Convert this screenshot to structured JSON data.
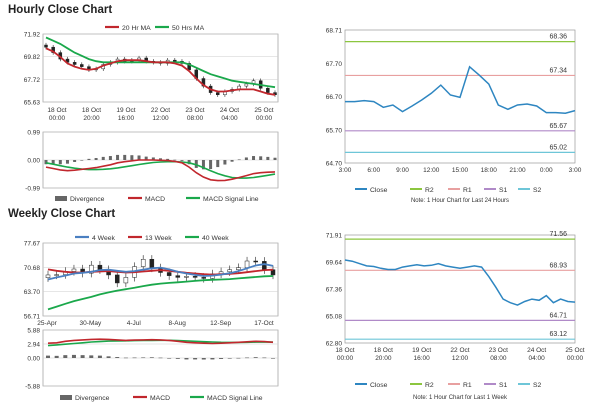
{
  "sections": {
    "hourly_title": "Hourly Close Chart",
    "weekly_title": "Weekly Close Chart"
  },
  "colors": {
    "ma_short": "#c1272d",
    "ma_long": "#1aa84b",
    "ma_4w": "#4a7fc1",
    "close": "#2e86c1",
    "r2": "#8cc63f",
    "r1": "#e8a0a0",
    "s1": "#b08ac8",
    "s2": "#6ec6d8",
    "macd": "#c1272d",
    "signal": "#1aa84b",
    "divergence": "#666666",
    "grid": "#cccccc"
  },
  "chart_data": [
    {
      "id": "hourly_candles",
      "type": "candlestick",
      "legend": [
        "20 Hr MA",
        "50 Hrs MA"
      ],
      "ylim": [
        65.63,
        71.92
      ],
      "y_ticks": [
        "71.92",
        "69.82",
        "67.72",
        "65.63"
      ],
      "x_ticks": [
        [
          "18 Oct",
          "00:00"
        ],
        [
          "18 Oct",
          "20:00"
        ],
        [
          "19 Oct",
          "16:00"
        ],
        [
          "22 Oct",
          "12:00"
        ],
        [
          "23 Oct",
          "08:00"
        ],
        [
          "24 Oct",
          "04:00"
        ],
        [
          "25 Oct",
          "00:00"
        ]
      ],
      "close": [
        70.7,
        70.2,
        69.6,
        69.3,
        69.1,
        68.9,
        68.6,
        68.7,
        69.1,
        69.3,
        69.6,
        69.4,
        69.5,
        69.7,
        69.4,
        69.3,
        69.2,
        69.5,
        69.4,
        69.2,
        68.6,
        67.8,
        67.1,
        66.5,
        66.3,
        66.6,
        66.8,
        67.1,
        67.3,
        67.6,
        66.9,
        66.5,
        66.3
      ],
      "ma20": [
        70.6,
        70.3,
        69.8,
        69.2,
        68.9,
        68.7,
        68.6,
        68.7,
        69.0,
        69.2,
        69.4,
        69.5,
        69.5,
        69.5,
        69.4,
        69.3,
        69.3,
        69.3,
        69.2,
        69.0,
        68.5,
        67.8,
        67.2,
        66.8,
        66.6,
        66.6,
        66.7,
        66.8,
        66.8,
        66.8,
        66.6,
        66.4,
        66.3
      ],
      "ma50": [
        71.6,
        71.3,
        71.0,
        70.6,
        70.2,
        69.9,
        69.6,
        69.4,
        69.3,
        69.3,
        69.3,
        69.3,
        69.3,
        69.3,
        69.3,
        69.3,
        69.3,
        69.3,
        69.3,
        69.3,
        69.1,
        68.8,
        68.5,
        68.2,
        68.0,
        67.8,
        67.6,
        67.5,
        67.4,
        67.3,
        67.2,
        67.1,
        67.0
      ]
    },
    {
      "id": "hourly_macd",
      "type": "line",
      "legend": [
        "Divergence",
        "MACD",
        "MACD Signal Line"
      ],
      "ylim": [
        -0.99,
        0.99
      ],
      "y_ticks": [
        "0.99",
        "0.00",
        "-0.99"
      ],
      "macd": [
        -0.25,
        -0.3,
        -0.35,
        -0.38,
        -0.36,
        -0.33,
        -0.3,
        -0.27,
        -0.22,
        -0.17,
        -0.1,
        -0.06,
        -0.03,
        0.0,
        0.0,
        0.0,
        -0.01,
        -0.02,
        -0.05,
        -0.1,
        -0.25,
        -0.45,
        -0.6,
        -0.7,
        -0.73,
        -0.72,
        -0.68,
        -0.62,
        -0.55,
        -0.48,
        -0.45,
        -0.43,
        -0.42
      ],
      "signal": [
        -0.1,
        -0.15,
        -0.2,
        -0.25,
        -0.29,
        -0.32,
        -0.34,
        -0.34,
        -0.33,
        -0.31,
        -0.28,
        -0.24,
        -0.2,
        -0.16,
        -0.12,
        -0.09,
        -0.07,
        -0.06,
        -0.06,
        -0.07,
        -0.1,
        -0.17,
        -0.27,
        -0.38,
        -0.48,
        -0.56,
        -0.62,
        -0.64,
        -0.64,
        -0.62,
        -0.58,
        -0.54,
        -0.5
      ]
    },
    {
      "id": "hourly_24h",
      "type": "line",
      "ylim": [
        64.7,
        68.71
      ],
      "y_ticks": [
        "68.71",
        "67.70",
        "66.70",
        "65.70",
        "64.70"
      ],
      "x_ticks": [
        "3:00",
        "6:00",
        "9:00",
        "12:00",
        "15:00",
        "18:00",
        "21:00",
        "0:00",
        "3:00"
      ],
      "levels": {
        "R2": 68.36,
        "R1": 67.34,
        "S1": 65.67,
        "S2": 65.02
      },
      "level_labels": {
        "R2": "68.36",
        "R1": "67.34",
        "S1": "65.67",
        "S2": "65.02"
      },
      "close": [
        66.55,
        66.55,
        66.58,
        66.55,
        66.38,
        66.45,
        66.25,
        66.42,
        66.6,
        66.8,
        67.05,
        66.75,
        66.68,
        67.6,
        67.35,
        67.08,
        66.45,
        66.32,
        66.45,
        66.48,
        66.42,
        66.22,
        66.22,
        66.2,
        66.28
      ],
      "legend": [
        "Close",
        "R2",
        "R1",
        "S1",
        "S2"
      ],
      "note": "Note: 1 Hour Chart for Last 24 Hours"
    },
    {
      "id": "weekly_candles",
      "type": "candlestick",
      "legend": [
        "4 Week",
        "13 Week",
        "40 Week"
      ],
      "ylim": [
        56.71,
        77.67
      ],
      "y_ticks": [
        "77.67",
        "70.68",
        "63.70",
        "56.71"
      ],
      "x_ticks": [
        "25-Apr",
        "30-May",
        "4-Jul",
        "8-Aug",
        "12-Sep",
        "17-Oct"
      ],
      "close": [
        68.5,
        68.6,
        69.5,
        70.2,
        69.0,
        71.3,
        70.0,
        68.5,
        66.2,
        67.8,
        70.9,
        73.0,
        70.5,
        69.2,
        68.3,
        67.8,
        68.1,
        67.8,
        67.5,
        68.8,
        69.4,
        70.0,
        70.6,
        72.5,
        72.4,
        70.0,
        68.5
      ],
      "wk4": [
        67.2,
        67.8,
        68.3,
        68.9,
        69.1,
        69.4,
        69.9,
        70.0,
        69.7,
        69.4,
        69.6,
        70.0,
        70.4,
        70.6,
        70.1,
        69.4,
        68.9,
        68.5,
        68.2,
        68.3,
        68.6,
        69.0,
        69.6,
        70.4,
        71.2,
        71.6,
        71.1
      ],
      "wk13": [
        70.1,
        69.7,
        69.4,
        69.2,
        69.2,
        69.4,
        69.5,
        69.6,
        69.4,
        69.2,
        69.3,
        69.5,
        69.7,
        69.9,
        69.7,
        69.4,
        69.1,
        68.9,
        68.7,
        68.6,
        68.7,
        68.8,
        69.0,
        69.3,
        69.6,
        69.9,
        70.0
      ],
      "wk40": [
        58.6,
        59.4,
        60.2,
        61.0,
        61.6,
        62.2,
        62.9,
        63.5,
        64.0,
        64.4,
        64.8,
        65.3,
        65.7,
        66.0,
        66.2,
        66.4,
        66.6,
        66.8,
        67.0,
        67.1,
        67.2,
        67.3,
        67.5,
        67.7,
        67.9,
        68.1,
        68.2
      ]
    },
    {
      "id": "weekly_macd",
      "type": "line",
      "legend": [
        "Divergence",
        "MACD",
        "MACD Signal Line"
      ],
      "ylim": [
        -5.88,
        5.88
      ],
      "y_ticks": [
        "5.88",
        "2.94",
        "0.00",
        "-5.88"
      ],
      "macd": [
        3.1,
        3.2,
        3.5,
        3.7,
        3.8,
        3.9,
        3.95,
        3.9,
        3.8,
        3.7,
        3.75,
        3.8,
        3.85,
        3.8,
        3.7,
        3.5,
        3.3,
        3.2,
        3.1,
        3.05,
        3.1,
        3.2,
        3.3,
        3.4,
        3.5,
        3.45,
        3.3
      ],
      "signal": [
        2.6,
        2.75,
        2.9,
        3.05,
        3.2,
        3.35,
        3.45,
        3.55,
        3.6,
        3.62,
        3.65,
        3.68,
        3.7,
        3.72,
        3.72,
        3.68,
        3.6,
        3.5,
        3.42,
        3.35,
        3.3,
        3.28,
        3.28,
        3.3,
        3.33,
        3.35,
        3.33
      ],
      "divergence": [
        0.5,
        0.45,
        0.6,
        0.65,
        0.6,
        0.55,
        0.5,
        0.35,
        0.2,
        0.08,
        0.1,
        0.12,
        0.15,
        0.08,
        -0.02,
        -0.18,
        -0.3,
        -0.3,
        -0.32,
        -0.3,
        -0.2,
        -0.08,
        0.02,
        0.1,
        0.17,
        0.1,
        -0.03
      ]
    },
    {
      "id": "weekly_hourly",
      "type": "line",
      "ylim": [
        62.8,
        71.91
      ],
      "y_ticks": [
        "71.91",
        "69.64",
        "67.36",
        "65.08",
        "62.80"
      ],
      "x_ticks": [
        [
          "18 Oct",
          "00:00"
        ],
        [
          "18 Oct",
          "20:00"
        ],
        [
          "19 Oct",
          "16:00"
        ],
        [
          "22 Oct",
          "12:00"
        ],
        [
          "23 Oct",
          "08:00"
        ],
        [
          "24 Oct",
          "04:00"
        ],
        [
          "25 Oct",
          "00:00"
        ]
      ],
      "levels": {
        "R2": 71.56,
        "R1": 68.93,
        "S1": 64.71,
        "S2": 63.12
      },
      "level_labels": {
        "R2": "71.56",
        "R1": "68.93",
        "S1": "64.71",
        "S2": "63.12"
      },
      "close": [
        69.8,
        69.7,
        69.5,
        69.3,
        69.25,
        69.1,
        69.0,
        69.0,
        69.2,
        69.3,
        69.4,
        69.3,
        69.35,
        69.5,
        69.3,
        69.2,
        69.1,
        69.2,
        69.3,
        69.2,
        68.4,
        67.5,
        66.5,
        66.2,
        66.0,
        66.3,
        66.5,
        66.4,
        66.8,
        66.2,
        66.5,
        66.3,
        66.25
      ],
      "legend": [
        "Close",
        "R2",
        "R1",
        "S1",
        "S2"
      ],
      "note": "Note: 1 Hour Chart for Last 1 Week"
    }
  ]
}
